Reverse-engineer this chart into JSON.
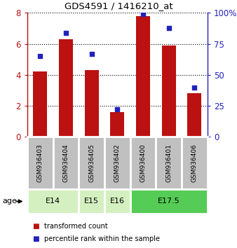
{
  "title": "GDS4591 / 1416210_at",
  "samples": [
    "GSM936403",
    "GSM936404",
    "GSM936405",
    "GSM936402",
    "GSM936400",
    "GSM936401",
    "GSM936406"
  ],
  "red_values": [
    4.2,
    6.3,
    4.3,
    1.6,
    7.8,
    5.9,
    2.8
  ],
  "blue_pct": [
    65,
    84,
    67,
    22,
    99,
    88,
    40
  ],
  "red_ylim": [
    0,
    8
  ],
  "blue_ylim": [
    0,
    100
  ],
  "yticks_red": [
    0,
    2,
    4,
    6,
    8
  ],
  "yticks_blue": [
    0,
    25,
    50,
    75,
    100
  ],
  "ytick_labels_red": [
    "0",
    "2",
    "4",
    "6",
    "8"
  ],
  "ytick_labels_blue": [
    "0",
    "25",
    "50",
    "75",
    "100%"
  ],
  "age_groups": [
    {
      "label": "E14",
      "indices": [
        0,
        1
      ],
      "color": "#d4f0c0"
    },
    {
      "label": "E15",
      "indices": [
        2
      ],
      "color": "#d4f0c0"
    },
    {
      "label": "E16",
      "indices": [
        3
      ],
      "color": "#d4f0c0"
    },
    {
      "label": "E17.5",
      "indices": [
        4,
        5,
        6
      ],
      "color": "#55cc55"
    }
  ],
  "bar_color": "#bb1111",
  "dot_color": "#2222bb",
  "sample_box_color": "#c0c0c0",
  "sample_box_edge": "#888888",
  "legend_red": "transformed count",
  "legend_blue": "percentile rank within the sample",
  "age_label": "age",
  "bar_width": 0.55
}
